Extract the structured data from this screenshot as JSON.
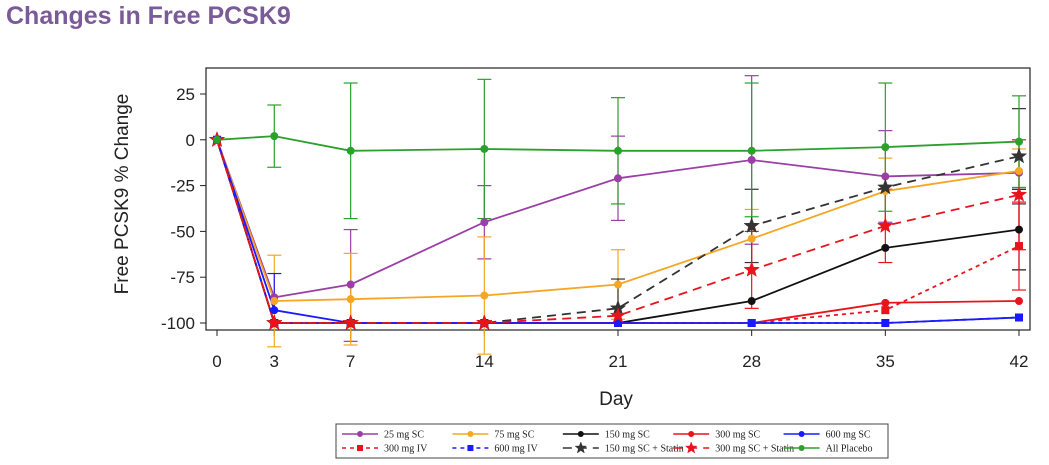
{
  "title": "Changes in Free PCSK9",
  "chart_data": {
    "type": "line",
    "xlabel": "Day",
    "ylabel": "Free PCSK9 % Change",
    "x": [
      0,
      3,
      7,
      14,
      21,
      28,
      35,
      42
    ],
    "x_ticks": [
      "0",
      "3",
      "7",
      "14",
      "21",
      "28",
      "35",
      "42"
    ],
    "xlim": [
      0,
      42
    ],
    "y_ticks": [
      "25",
      "0",
      "-25",
      "-50",
      "-75",
      "-100"
    ],
    "y_tick_values": [
      25,
      0,
      -25,
      -50,
      -75,
      -100
    ],
    "ylim": [
      -103,
      40
    ],
    "grid": false,
    "legend_position": "bottom",
    "series": [
      {
        "name": "25 mg SC",
        "color": "#9b3fa6",
        "dash": "solid",
        "marker": "circle",
        "values": [
          0,
          -86,
          -79,
          -45,
          -21,
          -11,
          -20,
          -18
        ],
        "err_low": [
          null,
          null,
          -49,
          -25,
          2,
          35,
          5,
          null
        ],
        "err_high": [
          null,
          null,
          -110,
          -65,
          -44,
          -57,
          -45,
          null
        ]
      },
      {
        "name": "75 mg SC",
        "color": "#f5a623",
        "dash": "solid",
        "marker": "circle",
        "values": [
          0,
          -88,
          -87,
          -85,
          -79,
          -54,
          -28,
          -17
        ],
        "err_low": [
          null,
          -63,
          -62,
          -53,
          -60,
          -38,
          -10,
          -5
        ],
        "err_high": [
          null,
          -113,
          -112,
          -117,
          -98,
          -70,
          -46,
          -29
        ]
      },
      {
        "name": "150 mg SC",
        "color": "#111111",
        "dash": "solid",
        "marker": "circle",
        "values": [
          0,
          -100,
          -100,
          -100,
          -100,
          -88,
          -59,
          -49
        ],
        "err_low": [
          null,
          null,
          null,
          null,
          null,
          null,
          null,
          -27
        ],
        "err_high": [
          null,
          null,
          null,
          null,
          null,
          null,
          null,
          -71
        ]
      },
      {
        "name": "300 mg SC",
        "color": "#e8141c",
        "dash": "solid",
        "marker": "circle",
        "values": [
          0,
          -100,
          -100,
          -100,
          -100,
          -100,
          -89,
          -88
        ],
        "err_low": [
          null,
          null,
          null,
          null,
          null,
          null,
          null,
          null
        ],
        "err_high": [
          null,
          null,
          null,
          null,
          null,
          null,
          null,
          null
        ]
      },
      {
        "name": "600 mg SC",
        "color": "#1a1aff",
        "dash": "solid",
        "marker": "circle",
        "values": [
          0,
          -93,
          -100,
          -100,
          -100,
          -100,
          -100,
          -97
        ],
        "err_low": [
          null,
          -73,
          null,
          null,
          null,
          null,
          null,
          null
        ],
        "err_high": [
          null,
          null,
          null,
          null,
          null,
          null,
          null,
          null
        ]
      },
      {
        "name": "300 mg IV",
        "color": "#e8141c",
        "dash": "dotted",
        "marker": "square",
        "values": [
          0,
          -100,
          -100,
          -100,
          -100,
          -100,
          -93,
          -58
        ],
        "err_low": [
          null,
          null,
          null,
          null,
          null,
          null,
          null,
          -34
        ],
        "err_high": [
          null,
          null,
          null,
          null,
          null,
          null,
          null,
          -82
        ]
      },
      {
        "name": "600 mg IV",
        "color": "#1a1aff",
        "dash": "dotted",
        "marker": "square",
        "values": [
          0,
          -100,
          -100,
          -100,
          -100,
          -100,
          -100,
          -97
        ],
        "err_low": [
          null,
          null,
          null,
          null,
          null,
          null,
          null,
          null
        ],
        "err_high": [
          null,
          null,
          null,
          null,
          null,
          null,
          null,
          null
        ]
      },
      {
        "name": "150 mg SC + Statin",
        "color": "#333333",
        "dash": "dashed",
        "marker": "star",
        "values": [
          0,
          -100,
          -100,
          -100,
          -92,
          -47,
          -26,
          -9
        ],
        "err_low": [
          null,
          null,
          null,
          null,
          -76,
          -27,
          null,
          17
        ],
        "err_high": [
          null,
          null,
          null,
          null,
          null,
          -67,
          null,
          -35
        ]
      },
      {
        "name": "300 mg SC + Statin",
        "color": "#e8141c",
        "dash": "dashed",
        "marker": "star",
        "values": [
          0,
          -100,
          -100,
          -100,
          -96,
          -71,
          -47,
          -30
        ],
        "err_low": [
          null,
          null,
          null,
          null,
          null,
          -50,
          -27,
          0
        ],
        "err_high": [
          null,
          null,
          null,
          null,
          null,
          -92,
          -67,
          -60
        ]
      },
      {
        "name": "All Placebo",
        "color": "#2ca02c",
        "dash": "solid",
        "marker": "circle",
        "values": [
          0,
          2,
          -6,
          -5,
          -6,
          -6,
          -4,
          -1
        ],
        "err_low": [
          null,
          19,
          31,
          33,
          23,
          31,
          31,
          24
        ],
        "err_high": [
          null,
          -15,
          -43,
          -43,
          -35,
          -42,
          -39,
          -26
        ]
      }
    ]
  }
}
